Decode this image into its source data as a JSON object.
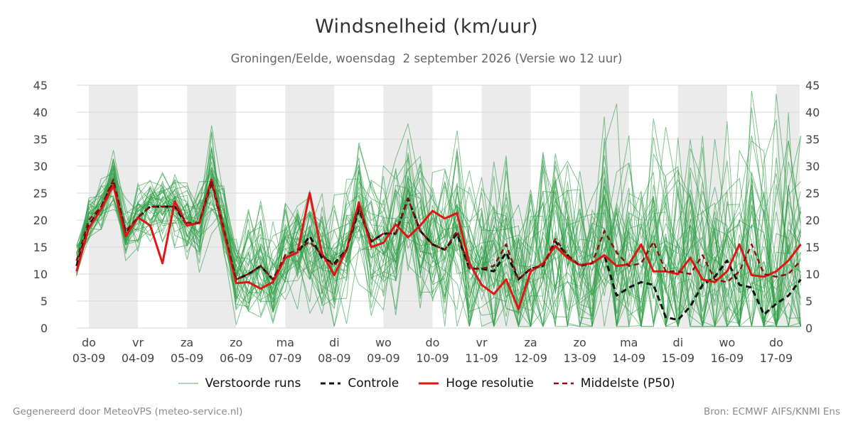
{
  "header": {
    "title": "Windsnelheid (km/uur)",
    "subtitle": "Groningen/Eelde, woensdag  2 september 2026 (Versie wo 12 uur)"
  },
  "footer": {
    "left": "Gegenereerd door MeteoVPS (meteo-service.nl)",
    "right": "Bron: ECMWF AIFS/KNMI Ens"
  },
  "colors": {
    "ensemble": "#2e9e46",
    "control": "#111111",
    "high_res": "#e01515",
    "median": "#8b1010",
    "shade": "#ebebeb",
    "grid": "#d9d9d9"
  },
  "legend": [
    {
      "key": "ensemble",
      "label": "Verstoorde runs",
      "style": "thin"
    },
    {
      "key": "control",
      "label": "Controle",
      "style": "dash"
    },
    {
      "key": "high_res",
      "label": "Hoge resolutie",
      "style": "solid"
    },
    {
      "key": "median",
      "label": "Middelste (P50)",
      "style": "dash"
    }
  ],
  "chart_data": {
    "type": "line",
    "title": "Windsnelheid (km/uur)",
    "x_unit": "days since 03-09 00 uur",
    "xlim": [
      -0.25,
      14.5
    ],
    "ylim": [
      0,
      45
    ],
    "yticks": [
      0,
      5,
      10,
      15,
      20,
      25,
      30,
      35,
      40,
      45
    ],
    "grid": true,
    "legend_position": "bottom",
    "day_labels": [
      {
        "day": "do",
        "date": "03-09"
      },
      {
        "day": "vr",
        "date": "04-09"
      },
      {
        "day": "za",
        "date": "05-09"
      },
      {
        "day": "zo",
        "date": "06-09"
      },
      {
        "day": "ma",
        "date": "07-09"
      },
      {
        "day": "di",
        "date": "08-09"
      },
      {
        "day": "wo",
        "date": "09-09"
      },
      {
        "day": "do",
        "date": "10-09"
      },
      {
        "day": "vr",
        "date": "11-09"
      },
      {
        "day": "za",
        "date": "12-09"
      },
      {
        "day": "zo",
        "date": "13-09"
      },
      {
        "day": "ma",
        "date": "14-09"
      },
      {
        "day": "di",
        "date": "15-09"
      },
      {
        "day": "wo",
        "date": "16-09"
      },
      {
        "day": "do",
        "date": "17-09"
      }
    ],
    "shaded_days": [
      0,
      2,
      4,
      6,
      8,
      10,
      12,
      14
    ],
    "x": [
      -0.25,
      0,
      0.25,
      0.5,
      0.75,
      1,
      1.25,
      1.5,
      1.75,
      2,
      2.25,
      2.5,
      2.75,
      3,
      3.25,
      3.5,
      3.75,
      4,
      4.25,
      4.5,
      4.75,
      5,
      5.25,
      5.5,
      5.75,
      6,
      6.25,
      6.5,
      6.75,
      7,
      7.25,
      7.5,
      7.75,
      8,
      8.25,
      8.5,
      8.75,
      9,
      9.25,
      9.5,
      9.75,
      10,
      10.25,
      10.5,
      10.75,
      11,
      11.25,
      11.5,
      11.75,
      12,
      12.25,
      12.5,
      12.75,
      13,
      13.25,
      13.5,
      13.75,
      14,
      14.25,
      14.5
    ],
    "series": [
      {
        "name": "Hoge resolutie",
        "key": "high_res",
        "values": [
          10.5,
          18.5,
          22,
          26.5,
          17,
          20.5,
          19,
          12,
          23.5,
          19,
          19.5,
          27.5,
          18,
          8.3,
          8.5,
          7.3,
          8.5,
          13,
          14,
          25,
          13.8,
          9.8,
          14.5,
          23.3,
          15,
          15.8,
          19.2,
          16.8,
          19,
          21.7,
          20.3,
          21.3,
          12,
          8,
          6.3,
          9,
          3.5,
          10.5,
          12,
          15.2,
          13,
          11.7,
          12,
          13.5,
          11.5,
          11.8,
          15.5,
          10.5,
          10.5,
          10,
          13,
          9,
          8.5,
          10.5,
          15.5,
          9.8,
          9.5,
          10.5,
          12.5,
          15.5
        ]
      },
      {
        "name": "Controle",
        "key": "control",
        "values": [
          11.5,
          19,
          22.5,
          27,
          17.5,
          20.5,
          22.5,
          22.5,
          22.5,
          19,
          19.5,
          27,
          18,
          9,
          10,
          11.5,
          9,
          13,
          14,
          17,
          13,
          12,
          14.5,
          22,
          16,
          17.5,
          17.5,
          24,
          18,
          15.5,
          14.5,
          17.5,
          11,
          11,
          10.5,
          14,
          9,
          11,
          11.5,
          16,
          13.5,
          11.5,
          12,
          13.5,
          6,
          7.5,
          8.5,
          8,
          2,
          1.5,
          4,
          8,
          9.5,
          12.5,
          8,
          7.5,
          2.5,
          4.5,
          6,
          9
        ]
      },
      {
        "name": "Middelste (P50)",
        "key": "median",
        "values": [
          12.5,
          20,
          22.5,
          27.5,
          18,
          20.5,
          22.5,
          22.5,
          22.5,
          19.5,
          19.5,
          27.5,
          18.5,
          9,
          10,
          11.5,
          9,
          13.5,
          14.5,
          16,
          13.5,
          11.5,
          14.5,
          22.5,
          16,
          17.5,
          17.5,
          24,
          18,
          15.5,
          14.5,
          18,
          11,
          11,
          11.5,
          15.5,
          9,
          11,
          11.5,
          16.5,
          13.5,
          11.5,
          12,
          18,
          14,
          11.5,
          12,
          16,
          10.5,
          10.5,
          10,
          13.5,
          9,
          8.5,
          10.5,
          15.5,
          10,
          9.5,
          10,
          12.5
        ]
      }
    ]
  }
}
